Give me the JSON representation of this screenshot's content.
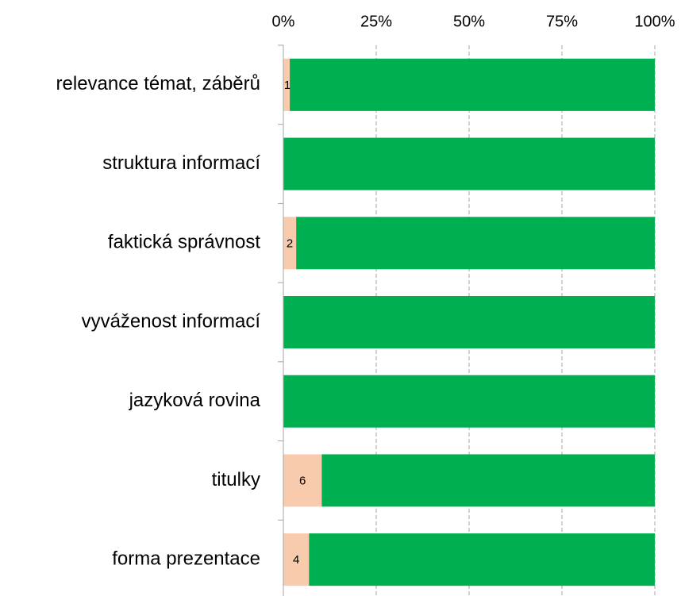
{
  "chart_data": {
    "type": "bar",
    "orientation": "horizontal",
    "stacking": "percent",
    "categories": [
      "relevance témat, záběrů",
      "struktura informací",
      "faktická správnost",
      "vyváženost informací",
      "jazyková rovina",
      "titulky",
      "forma prezentace"
    ],
    "series": [
      {
        "color": "#f8cbad",
        "values": [
          1,
          0,
          2,
          0,
          0,
          6,
          4
        ],
        "data_labels": true
      },
      {
        "color": "#00b050",
        "values": [
          57,
          58,
          56,
          58,
          58,
          52,
          54
        ],
        "data_labels": false
      }
    ],
    "xlim": [
      0,
      100
    ],
    "xticks": [
      {
        "value": 0,
        "label": "0%"
      },
      {
        "value": 25,
        "label": "25%"
      },
      {
        "value": 50,
        "label": "50%"
      },
      {
        "value": 75,
        "label": "75%"
      },
      {
        "value": 100,
        "label": "100%"
      }
    ],
    "grid": true
  }
}
